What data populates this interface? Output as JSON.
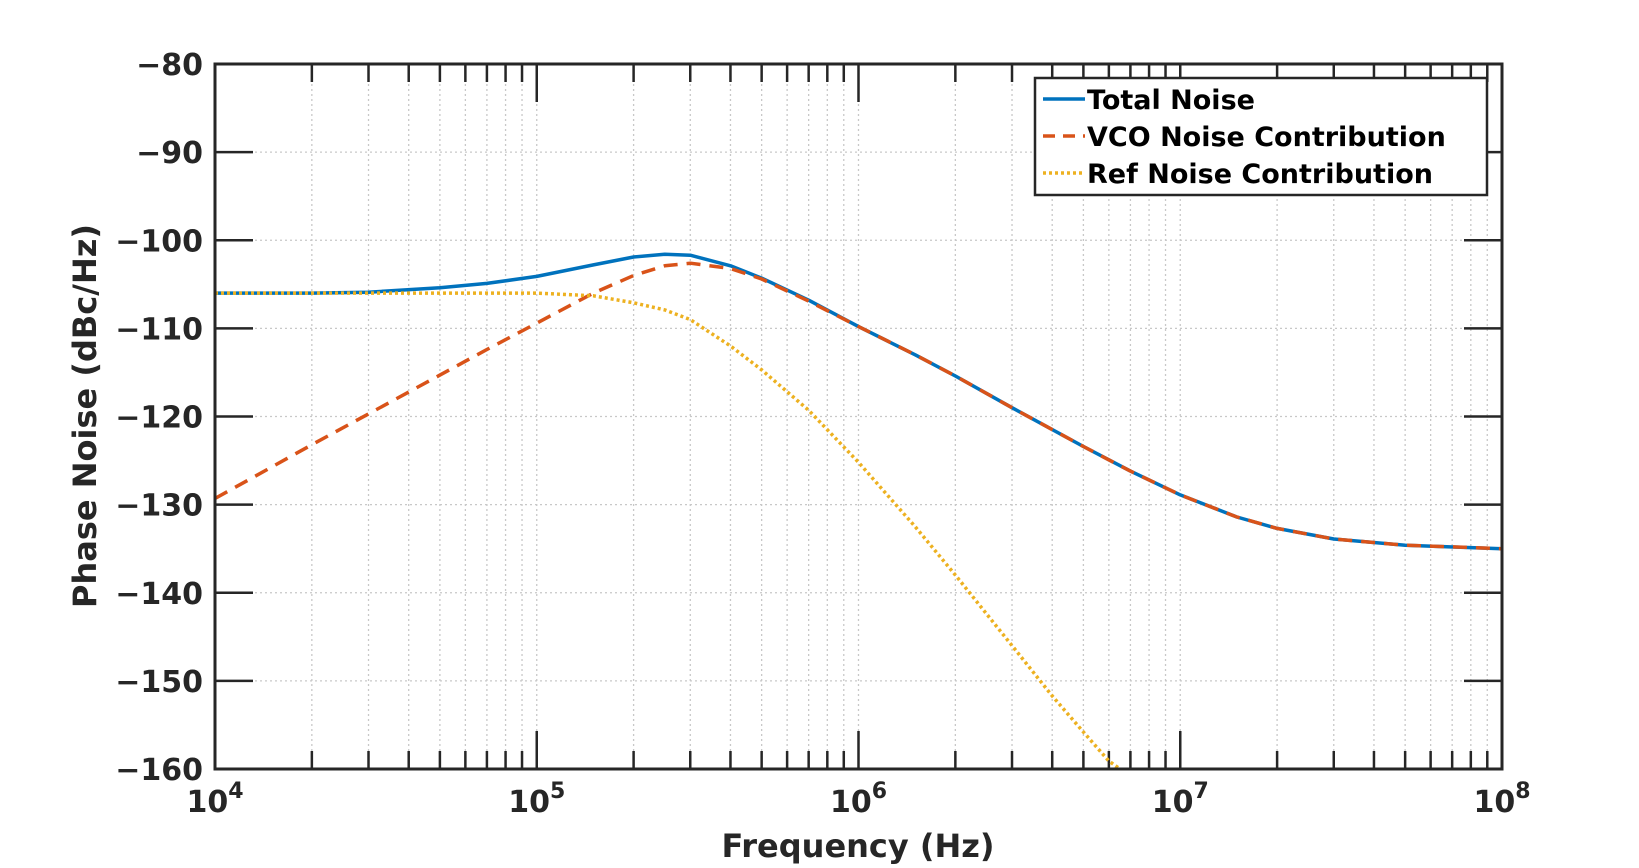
{
  "chart_data": {
    "type": "line",
    "xscale": "log",
    "xlabel": "Frequency (Hz)",
    "ylabel": "Phase Noise (dBc/Hz)",
    "xlim": [
      10000,
      100000000
    ],
    "ylim": [
      -160,
      -80
    ],
    "grid": true,
    "legend_position": "top-right",
    "x_ticks": [
      {
        "value": 10000,
        "base": "10",
        "exp": "4"
      },
      {
        "value": 100000,
        "base": "10",
        "exp": "5"
      },
      {
        "value": 1000000,
        "base": "10",
        "exp": "6"
      },
      {
        "value": 10000000,
        "base": "10",
        "exp": "7"
      },
      {
        "value": 100000000,
        "base": "10",
        "exp": "8"
      }
    ],
    "y_ticks": [
      {
        "value": -80,
        "label": "−80"
      },
      {
        "value": -90,
        "label": "−90"
      },
      {
        "value": -100,
        "label": "−100"
      },
      {
        "value": -110,
        "label": "−110"
      },
      {
        "value": -120,
        "label": "−120"
      },
      {
        "value": -130,
        "label": "−130"
      },
      {
        "value": -140,
        "label": "−140"
      },
      {
        "value": -150,
        "label": "−150"
      },
      {
        "value": -160,
        "label": "−160"
      }
    ],
    "series": [
      {
        "name": "Total Noise",
        "color": "#0072BD",
        "dash": "solid",
        "x": [
          10000,
          20000,
          30000,
          50000,
          70000,
          100000,
          150000,
          200000,
          250000,
          300000,
          400000,
          500000,
          700000,
          1000000,
          1500000,
          2000000,
          3000000,
          5000000,
          7000000,
          10000000,
          15000000,
          20000000,
          30000000,
          50000000,
          100000000
        ],
        "values": [
          -106,
          -106,
          -105.9,
          -105.4,
          -104.9,
          -104.1,
          -102.8,
          -101.9,
          -101.6,
          -101.7,
          -102.9,
          -104.3,
          -106.8,
          -109.8,
          -113,
          -115.4,
          -119,
          -123.4,
          -126.2,
          -128.9,
          -131.4,
          -132.7,
          -133.9,
          -134.6,
          -135
        ]
      },
      {
        "name": "VCO Noise Contribution",
        "color": "#D95319",
        "dash": "dashed",
        "x": [
          10000,
          20000,
          30000,
          50000,
          70000,
          100000,
          150000,
          200000,
          250000,
          300000,
          400000,
          500000,
          700000,
          1000000,
          1500000,
          2000000,
          3000000,
          5000000,
          7000000,
          10000000,
          15000000,
          20000000,
          30000000,
          50000000,
          100000000
        ],
        "values": [
          -129.3,
          -123.2,
          -119.7,
          -115.3,
          -112.4,
          -109.4,
          -106,
          -104,
          -102.9,
          -102.6,
          -103.2,
          -104.4,
          -106.9,
          -109.8,
          -113,
          -115.4,
          -119,
          -123.4,
          -126.2,
          -128.9,
          -131.4,
          -132.7,
          -133.9,
          -134.6,
          -135
        ]
      },
      {
        "name": "Ref Noise Contribution",
        "color": "#EDB120",
        "dash": "dotted",
        "x": [
          10000,
          30000,
          50000,
          70000,
          100000,
          150000,
          200000,
          250000,
          300000,
          400000,
          500000,
          700000,
          1000000,
          1500000,
          2000000,
          3000000,
          4000000,
          5000000,
          6000000,
          6500000
        ],
        "values": [
          -106,
          -106,
          -106,
          -106,
          -106,
          -106.3,
          -107.1,
          -107.9,
          -109,
          -112,
          -114.7,
          -119.3,
          -125.2,
          -132.5,
          -138,
          -146,
          -151.7,
          -155.8,
          -159.1,
          -160
        ]
      }
    ]
  }
}
